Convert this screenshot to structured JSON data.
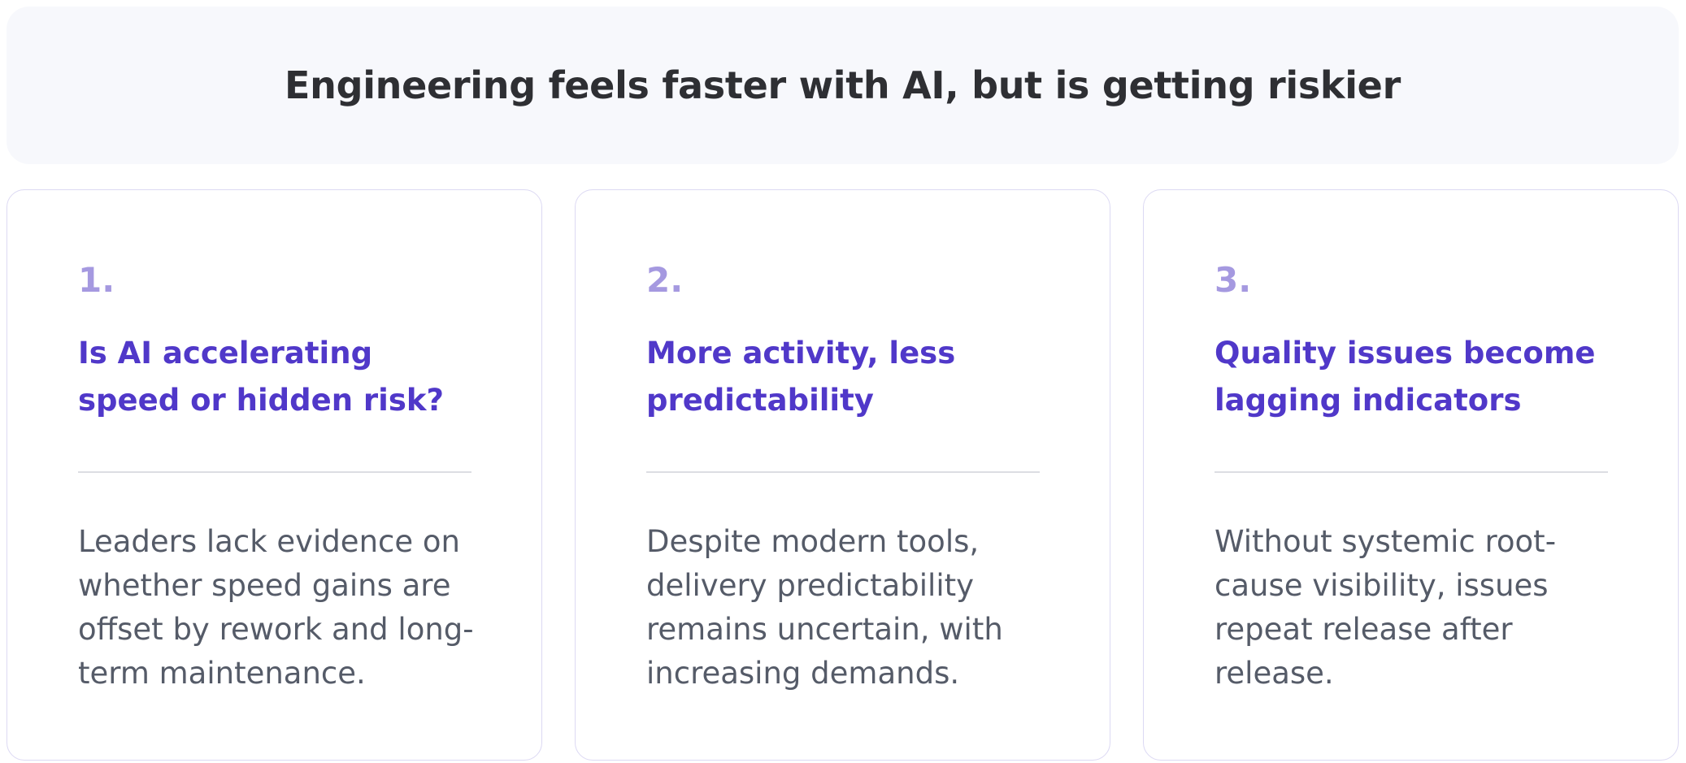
{
  "header": {
    "title": "Engineering feels faster with AI, but is getting riskier"
  },
  "cards": [
    {
      "number": "1.",
      "title": "Is AI accelerating speed or hidden risk?",
      "body": "Leaders lack evidence on whether speed gains are offset by rework and long-term maintenance."
    },
    {
      "number": "2.",
      "title": "More activity, less predictability",
      "body": "Despite modern tools, delivery predictability remains uncertain, with increasing demands."
    },
    {
      "number": "3.",
      "title": "Quality issues become lagging indicators",
      "body": "Without systemic root-cause visibility, issues repeat release after release."
    }
  ],
  "colors": {
    "header_bg": "#f7f8fc",
    "title_text": "#2e2f33",
    "number": "#a599e0",
    "card_title": "#5038c9",
    "body_text": "#555b68",
    "card_border": "#dcd9f3",
    "divider": "#dcdde3"
  }
}
